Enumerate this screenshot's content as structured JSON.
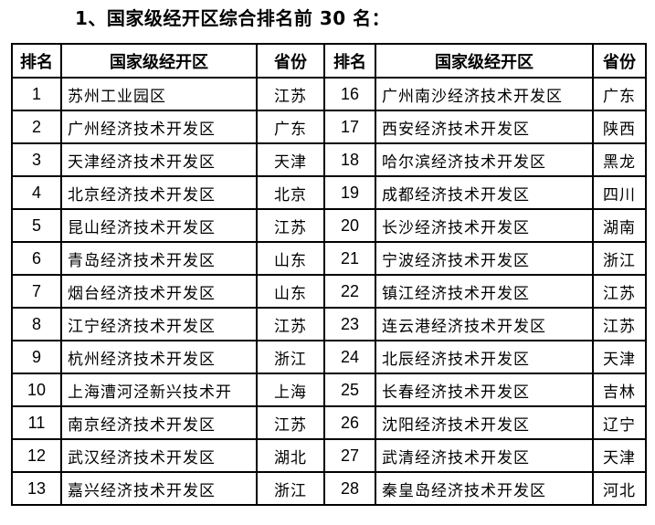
{
  "title": "1、国家级经开区综合排名前 30 名：",
  "headers": [
    "排名",
    "国家级经开区",
    "省份",
    "排名",
    "国家级经开区",
    "省份"
  ],
  "rows": [
    [
      "1",
      "苏州工业园区",
      "江苏",
      "16",
      "广州南沙经济技术开发区",
      "广东"
    ],
    [
      "2",
      "广州经济技术开发区",
      "广东",
      "17",
      "西安经济技术开发区",
      "陕西"
    ],
    [
      "3",
      "天津经济技术开发区",
      "天津",
      "18",
      "哈尔滨经济技术开发区",
      "黑龙"
    ],
    [
      "4",
      "北京经济技术开发区",
      "北京",
      "19",
      "成都经济技术开发区",
      "四川"
    ],
    [
      "5",
      "昆山经济技术开发区",
      "江苏",
      "20",
      "长沙经济技术开发区",
      "湖南"
    ],
    [
      "6",
      "青岛经济技术开发区",
      "山东",
      "21",
      "宁波经济技术开发区",
      "浙江"
    ],
    [
      "7",
      "烟台经济技术开发区",
      "山东",
      "22",
      "镇江经济技术开发区",
      "江苏"
    ],
    [
      "8",
      "江宁经济技术开发区",
      "江苏",
      "23",
      "连云港经济技术开发区",
      "江苏"
    ],
    [
      "9",
      "杭州经济技术开发区",
      "浙江",
      "24",
      "北辰经济技术开发区",
      "天津"
    ],
    [
      "10",
      "上海漕河泾新兴技术开",
      "上海",
      "25",
      "长春经济技术开发区",
      "吉林"
    ],
    [
      "11",
      "南京经济技术开发区",
      "江苏",
      "26",
      "沈阳经济技术开发区",
      "辽宁"
    ],
    [
      "12",
      "武汉经济技术开发区",
      "湖北",
      "27",
      "武清经济技术开发区",
      "天津"
    ],
    [
      "13",
      "嘉兴经济技术开发区",
      "浙江",
      "28",
      "秦皇岛经济技术开发区",
      "河北"
    ]
  ]
}
